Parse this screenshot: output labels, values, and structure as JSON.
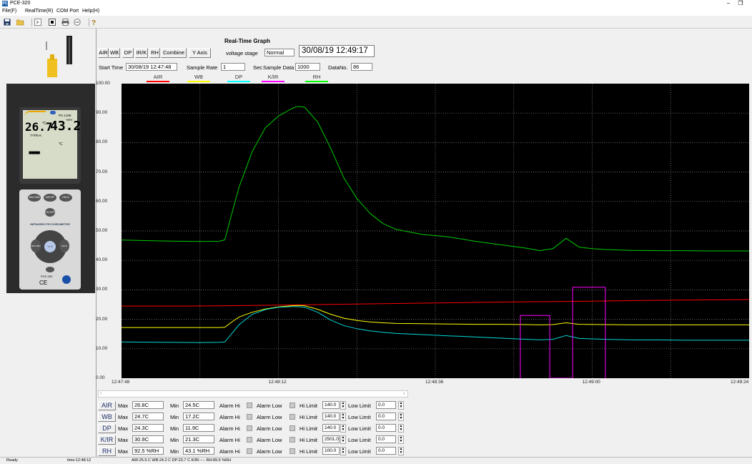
{
  "window": {
    "title": "PCE-320",
    "minimize": "–",
    "restore": "❐",
    "icon": "PC"
  },
  "menu": [
    "File(F)",
    "RealTime(R)",
    "COM Port",
    "Help(H)"
  ],
  "toolbar_icons": [
    "save-icon",
    "open-folder-icon",
    "play-icon",
    "stop-icon",
    "print-icon",
    "disconnect-icon",
    "help-icon"
  ],
  "device": {
    "reading_temp": "26.7",
    "temp_unit": "°C",
    "reading_rh": "43.2",
    "rh_unit": "%RH",
    "brand": "PC-LINK",
    "probe": "TYPE-K",
    "unit2": "°C",
    "dashes": "■■■■",
    "label": "INFRARED PSYCHROMETER",
    "model": "PCE-320",
    "ce": "CE",
    "keys": [
      "MAX MIN",
      "ΔIR DP",
      "HOLD",
      "ON OFF",
      "MAX MIN",
      "°C °F",
      "HOLD"
    ]
  },
  "graph": {
    "title": "Real-Time Graph",
    "channel_buttons": [
      "AIR",
      "WB",
      "DP",
      "IR/K",
      "RH",
      "Combine"
    ],
    "yaxis_button": "Y Axis",
    "voltage_label": "voltage stage",
    "voltage_value": "Normal",
    "datetime": "30/08/19 12:49:17",
    "start_time_label": "Start Time",
    "start_time": "30/08/19 12:47:48",
    "sample_rate_label": "Sample Rate",
    "sample_rate": "1",
    "sec": "Sec",
    "sample_data_label": "Sample Data",
    "sample_data": "1000",
    "datano_label": "DataNo.",
    "datano": "86"
  },
  "chart_data": {
    "type": "line",
    "background": "#000000",
    "ylim": [
      0,
      100
    ],
    "y_ticks": [
      "100.00",
      "90.00",
      "80.00",
      "70.00",
      "60.00",
      "50.00",
      "40.00",
      "30.00",
      "20.00",
      "10.00",
      "0.00"
    ],
    "x_ticks": [
      "12:47:48",
      "12:48:12",
      "12:48:36",
      "12:49:00",
      "12:49:24"
    ],
    "xlim_seconds": [
      0,
      96
    ],
    "grid": true,
    "legend": [
      {
        "name": "AIR",
        "color": "#ff0000"
      },
      {
        "name": "WB",
        "color": "#ffff00"
      },
      {
        "name": "DP",
        "color": "#00ffff"
      },
      {
        "name": "K/IR",
        "color": "#ff00ff"
      },
      {
        "name": "RH",
        "color": "#00ff00"
      }
    ],
    "series": [
      {
        "name": "RH",
        "color": "#00cc00",
        "x": [
          0,
          6,
          12,
          15,
          15.8,
          17,
          18,
          20,
          22,
          24,
          26,
          27,
          28,
          30,
          32,
          34,
          36,
          38,
          40,
          42,
          46,
          50,
          54,
          58,
          62,
          64,
          66,
          68,
          70,
          72,
          74,
          78,
          82,
          86,
          90,
          94,
          96
        ],
        "y": [
          46.9,
          46.6,
          46.4,
          46.5,
          47,
          57,
          65,
          77,
          85,
          89,
          91.5,
          92.3,
          92,
          87,
          78,
          68,
          61,
          56,
          52.5,
          50.5,
          48.8,
          48,
          46.5,
          45.3,
          44.1,
          43.3,
          44,
          47.5,
          44.5,
          44,
          43.7,
          43.4,
          43.3,
          43.3,
          43.2,
          43.2,
          43.2
        ]
      },
      {
        "name": "AIR",
        "color": "#ff0000",
        "x": [
          0,
          10,
          20,
          30,
          40,
          50,
          60,
          70,
          80,
          90,
          96
        ],
        "y": [
          24.5,
          24.5,
          24.7,
          25.0,
          25.3,
          25.6,
          25.9,
          26.1,
          26.4,
          26.6,
          26.7
        ]
      },
      {
        "name": "WB",
        "color": "#ffff00",
        "x": [
          0,
          6,
          12,
          15,
          15.8,
          17,
          18,
          20,
          22,
          24,
          26,
          27,
          28,
          30,
          32,
          34,
          36,
          38,
          40,
          42,
          46,
          50,
          54,
          58,
          62,
          64,
          66,
          68,
          70,
          74,
          78,
          82,
          86,
          90,
          94,
          96
        ],
        "y": [
          17.2,
          17.2,
          17.2,
          17.2,
          17.3,
          19.3,
          20.8,
          22.4,
          23.5,
          24.2,
          24.6,
          24.7,
          24.6,
          23.4,
          21.7,
          20.4,
          19.6,
          19.1,
          18.8,
          18.6,
          18.5,
          18.4,
          18.3,
          18.3,
          18.2,
          18.1,
          18.2,
          18.8,
          18.3,
          18.2,
          18.1,
          18.1,
          18.1,
          18.1,
          18.1,
          18.1
        ]
      },
      {
        "name": "DP",
        "color": "#00d8d8",
        "x": [
          0,
          6,
          12,
          15,
          15.8,
          17,
          18,
          20,
          22,
          24,
          26,
          27,
          28,
          30,
          32,
          34,
          36,
          38,
          40,
          42,
          46,
          50,
          54,
          58,
          62,
          64,
          66,
          68,
          70,
          74,
          78,
          82,
          86,
          90,
          94,
          96
        ],
        "y": [
          12.3,
          12.2,
          12.1,
          12.2,
          12.3,
          15.5,
          18.2,
          21.7,
          23.3,
          24.1,
          24.3,
          24.3,
          24.1,
          22.4,
          19.7,
          17.9,
          16.8,
          16.1,
          15.6,
          15.2,
          14.8,
          14.4,
          14.0,
          13.6,
          13.2,
          13.0,
          13.2,
          14.5,
          13.5,
          13.2,
          13.0,
          13.0,
          12.9,
          12.9,
          12.9,
          12.9
        ]
      },
      {
        "name": "K/IR",
        "color": "#ff00ff",
        "x": [
          61,
          61,
          65.5,
          65.5,
          69,
          69,
          74,
          74
        ],
        "y": [
          0,
          21.3,
          21.3,
          0,
          0,
          30.9,
          30.9,
          0
        ]
      }
    ]
  },
  "stats": {
    "max_label": "Max",
    "min_label": "Min",
    "alarm_hi_label": "Alarm Hi",
    "alarm_low_label": "Alarm Low",
    "hi_limit_label": "Hi Limit",
    "low_limit_label": "Low Limit",
    "rows": [
      {
        "label": "AIR",
        "max": "26.8C",
        "min": "24.5C",
        "hi": "140.0",
        "low": "0.0"
      },
      {
        "label": "WB",
        "max": "24.7C",
        "min": "17.2C",
        "hi": "140.0",
        "low": "0.0"
      },
      {
        "label": "DP",
        "max": "24.3C",
        "min": "11.9C",
        "hi": "140.0",
        "low": "0.0"
      },
      {
        "label": "K/IR",
        "max": "30.9C",
        "min": "21.3C",
        "hi": "2501.0",
        "low": "0.0"
      },
      {
        "label": "RH",
        "max": "92.5 %RH",
        "min": "43.1 %RH",
        "hi": "100.0",
        "low": "0.0"
      }
    ]
  },
  "status": {
    "ready": "Ready",
    "time": "time:12:48:12",
    "readings": "AIR:25.5 C   WB:24.2 C   DP:23.7 C   K/IR:----   RH:89.6 %RH"
  }
}
